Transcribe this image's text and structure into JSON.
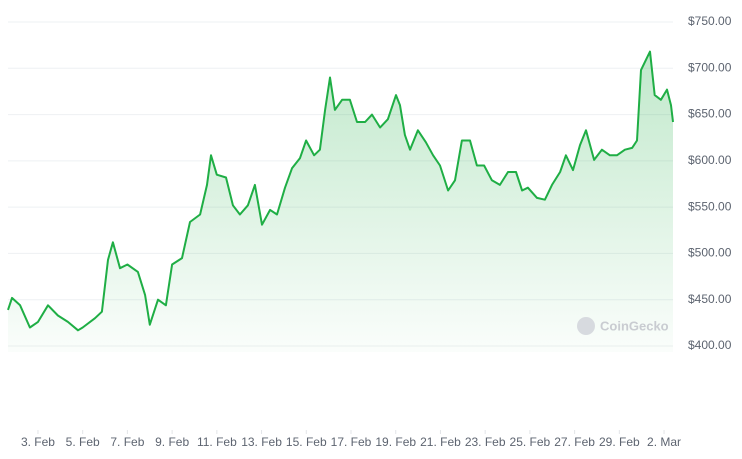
{
  "chart_data": {
    "type": "area",
    "color": "#1fae45",
    "watermark": "CoinGecko",
    "grid": true,
    "x": [
      1.66,
      1.84,
      2.2,
      2.64,
      3,
      3.45,
      3.89,
      4.34,
      4.79,
      5,
      5.55,
      5.86,
      6.13,
      6.35,
      6.67,
      7,
      7.47,
      7.79,
      8,
      8.37,
      8.72,
      9,
      9.44,
      9.8,
      10.25,
      10.56,
      10.74,
      11,
      11.41,
      11.72,
      12.03,
      12.39,
      12.7,
      13.02,
      13.38,
      13.69,
      14.05,
      14.36,
      14.72,
      14.99,
      15.35,
      15.61,
      15.84,
      16.06,
      16.28,
      16.6,
      16.95,
      17.27,
      17.63,
      17.94,
      18.3,
      18.65,
      19.01,
      19.19,
      19.41,
      19.64,
      19.99,
      20.35,
      20.67,
      20.98,
      21.34,
      21.65,
      21.96,
      22.32,
      22.63,
      22.95,
      23.3,
      23.66,
      24.02,
      24.38,
      24.65,
      24.91,
      25.32,
      25.67,
      25.99,
      26.35,
      26.61,
      26.93,
      27.24,
      27.51,
      27.87,
      28.22,
      28.58,
      28.89,
      29.25,
      29.57,
      29.79,
      29.97,
      30.15,
      30.37,
      30.58,
      30.86,
      31.13,
      31.31,
      31.4
    ],
    "values": [
      439,
      452,
      444,
      420,
      426,
      444,
      433,
      426,
      417,
      420,
      430,
      437,
      493,
      512,
      484,
      488,
      480,
      455,
      423,
      450,
      444,
      488,
      495,
      534,
      542,
      574,
      606,
      585,
      582,
      552,
      542,
      552,
      574,
      531,
      547,
      542,
      571,
      592,
      603,
      622,
      606,
      612,
      655,
      690,
      655,
      666,
      666,
      642,
      642,
      650,
      636,
      645,
      671,
      660,
      628,
      612,
      633,
      620,
      606,
      595,
      568,
      579,
      622,
      622,
      595,
      595,
      579,
      574,
      588,
      588,
      568,
      571,
      560,
      558,
      574,
      588,
      606,
      590,
      617,
      633,
      601,
      612,
      606,
      606,
      612,
      614,
      622,
      698,
      707,
      718,
      671,
      666,
      677,
      660,
      642
    ],
    "xlim": [
      1.66,
      31.4
    ],
    "xticks": [
      {
        "value": 3,
        "label": "3. Feb"
      },
      {
        "value": 5,
        "label": "5. Feb"
      },
      {
        "value": 7,
        "label": "7. Feb"
      },
      {
        "value": 9,
        "label": "9. Feb"
      },
      {
        "value": 11,
        "label": "11. Feb"
      },
      {
        "value": 13,
        "label": "13. Feb"
      },
      {
        "value": 15,
        "label": "15. Feb"
      },
      {
        "value": 17,
        "label": "17. Feb"
      },
      {
        "value": 19,
        "label": "19. Feb"
      },
      {
        "value": 21,
        "label": "21. Feb"
      },
      {
        "value": 23,
        "label": "23. Feb"
      },
      {
        "value": 25,
        "label": "25. Feb"
      },
      {
        "value": 27,
        "label": "27. Feb"
      },
      {
        "value": 29,
        "label": "29. Feb"
      },
      {
        "value": 31,
        "label": "2. Mar"
      }
    ],
    "ylim": [
      400,
      750
    ],
    "yticks": [
      {
        "value": 400,
        "label": "$400.00"
      },
      {
        "value": 450,
        "label": "$450.00"
      },
      {
        "value": 500,
        "label": "$500.00"
      },
      {
        "value": 550,
        "label": "$550.00"
      },
      {
        "value": 600,
        "label": "$600.00"
      },
      {
        "value": 650,
        "label": "$650.00"
      },
      {
        "value": 700,
        "label": "$700.00"
      },
      {
        "value": 750,
        "label": "$750.00"
      }
    ]
  }
}
